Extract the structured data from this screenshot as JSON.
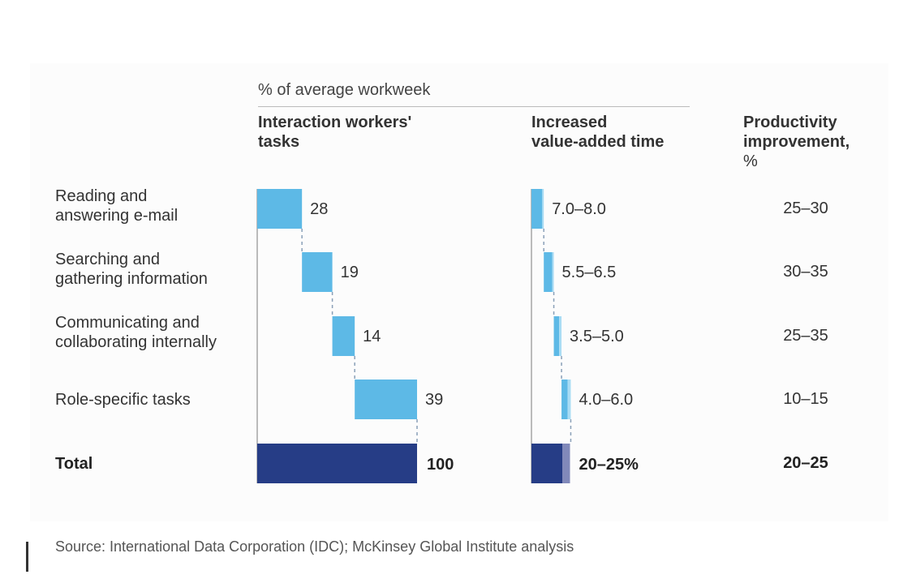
{
  "chart_data": {
    "type": "bar",
    "subtitle": "% of average workweek",
    "categories": [
      "Reading and\nanswering e-mail",
      "Searching and\ngathering information",
      "Communicating and\ncollaborating internally",
      "Role-specific tasks"
    ],
    "total_label": "Total",
    "columns": {
      "tasks_header": "Interaction workers'\ntasks",
      "value_added_header": "Increased\nvalue-added time",
      "productivity_header": "Productivity\nimprovement,",
      "productivity_unit": "%"
    },
    "series": [
      {
        "name": "Interaction workers' tasks",
        "values": [
          28,
          19,
          14,
          39
        ],
        "labels": [
          "28",
          "19",
          "14",
          "39"
        ],
        "total": 100,
        "total_label": "100"
      },
      {
        "name": "Increased value-added time",
        "ranges": [
          [
            7.0,
            8.0
          ],
          [
            5.5,
            6.5
          ],
          [
            3.5,
            5.0
          ],
          [
            4.0,
            6.0
          ]
        ],
        "labels": [
          "7.0–8.0",
          "5.5–6.5",
          "3.5–5.0",
          "4.0–6.0"
        ],
        "total": [
          20,
          25
        ],
        "total_label": "20–25%"
      },
      {
        "name": "Productivity improvement",
        "labels": [
          "25–30",
          "30–35",
          "25–35",
          "10–15"
        ],
        "total_label": "20–25"
      }
    ],
    "colors": {
      "bar": "#5db9e6",
      "bar_range": "#a9dcf4",
      "total": "#263d86",
      "total_range": "#8189ba",
      "connector": "#8aa0b8",
      "axis": "#bbbbbb"
    },
    "source": "Source: International Data Corporation (IDC); McKinsey Global Institute analysis"
  }
}
